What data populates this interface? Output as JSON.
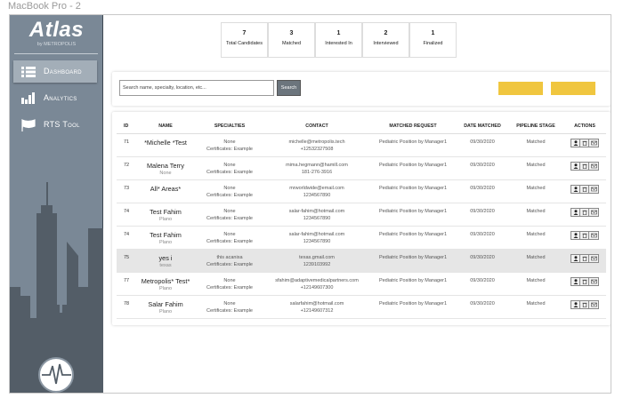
{
  "frame_title": "MacBook Pro - 2",
  "brand": {
    "name": "Atlas",
    "byline": "by METROPOLIS"
  },
  "nav": [
    {
      "label": "Dashboard",
      "icon": "list-icon",
      "active": true
    },
    {
      "label": "Analytics",
      "icon": "bar-chart-icon"
    },
    {
      "label": "RTS Tool",
      "icon": "flag-icon"
    }
  ],
  "stats": [
    {
      "value": "7",
      "label": "Total Candidates"
    },
    {
      "value": "3",
      "label": "Matched"
    },
    {
      "value": "1",
      "label": "Interested In"
    },
    {
      "value": "2",
      "label": "Interviewed"
    },
    {
      "value": "1",
      "label": "Finalized"
    }
  ],
  "search": {
    "placeholder": "Search name, specialty, location, etc...",
    "button": "Search"
  },
  "table": {
    "headers": [
      "ID",
      "NAME",
      "SPECIALTIES",
      "CONTACT",
      "MATCHED REQUEST",
      "DATE MATCHED",
      "PIPELINE STAGE",
      "ACTIONS"
    ],
    "rows": [
      {
        "id": "71",
        "name": "*Michelle *Test",
        "loc": "",
        "spec": "None",
        "cert": "Certificates: Example",
        "email": "michelle@metropolis.tech",
        "phone": "+12532327508",
        "request": "Pediatric Position by Manager1",
        "date": "09/30/2020",
        "stage": "Matched"
      },
      {
        "id": "72",
        "name": "Malena Terry",
        "loc": "None",
        "spec": "None",
        "cert": "Certificates: Example",
        "email": "mima.hegmann@hamill.com",
        "phone": "181-276-3916",
        "request": "Pediatric Position by Manager1",
        "date": "09/30/2020",
        "stage": "Matched"
      },
      {
        "id": "73",
        "name": "All* Areas*",
        "loc": "",
        "spec": "None",
        "cert": "Certificates: Example",
        "email": "mrworldwide@email.com",
        "phone": "1234567890",
        "request": "Pediatric Position by Manager1",
        "date": "09/30/2020",
        "stage": "Matched"
      },
      {
        "id": "74",
        "name": "Test Fahim",
        "loc": "Plano",
        "spec": "None",
        "cert": "Certificates: Example",
        "email": "salar-fahim@hotmail.com",
        "phone": "1234567890",
        "request": "Pediatric Position by Manager1",
        "date": "09/30/2020",
        "stage": "Matched"
      },
      {
        "id": "74",
        "name": "Test Fahim",
        "loc": "Plano",
        "spec": "None",
        "cert": "Certificates: Example",
        "email": "salar-fahim@hotmail.com",
        "phone": "1234567890",
        "request": "Pediatric Position by Manager1",
        "date": "09/30/2020",
        "stage": "Matched"
      },
      {
        "id": "75",
        "name": "yes i",
        "loc": "texas",
        "spec": "this acanixa",
        "cert": "Certificates: Example",
        "email": "texas.gmail.com",
        "phone": "1239103992",
        "request": "Pediatric Position by Manager1",
        "date": "09/30/2020",
        "stage": "Matched",
        "highlight": true
      },
      {
        "id": "77",
        "name": "Metropolis* Test*",
        "loc": "Plano",
        "spec": "None",
        "cert": "Certificates: Example",
        "email": "sfahim@adaptivemedicalpartners.com",
        "phone": "+12149607300",
        "request": "Pediatric Position by Manager1",
        "date": "09/30/2020",
        "stage": "Matched"
      },
      {
        "id": "78",
        "name": "Salar Fahim",
        "loc": "Plano",
        "spec": "None",
        "cert": "Certificates: Example",
        "email": "salarfahim@hotmail.com",
        "phone": "+12149607312",
        "request": "Pediatric Position by Manager1",
        "date": "09/30/2020",
        "stage": "Matched"
      }
    ]
  },
  "colors": {
    "sidebar": "#7a8896",
    "skyline": "#535d67",
    "accent": "#f0c63f"
  }
}
